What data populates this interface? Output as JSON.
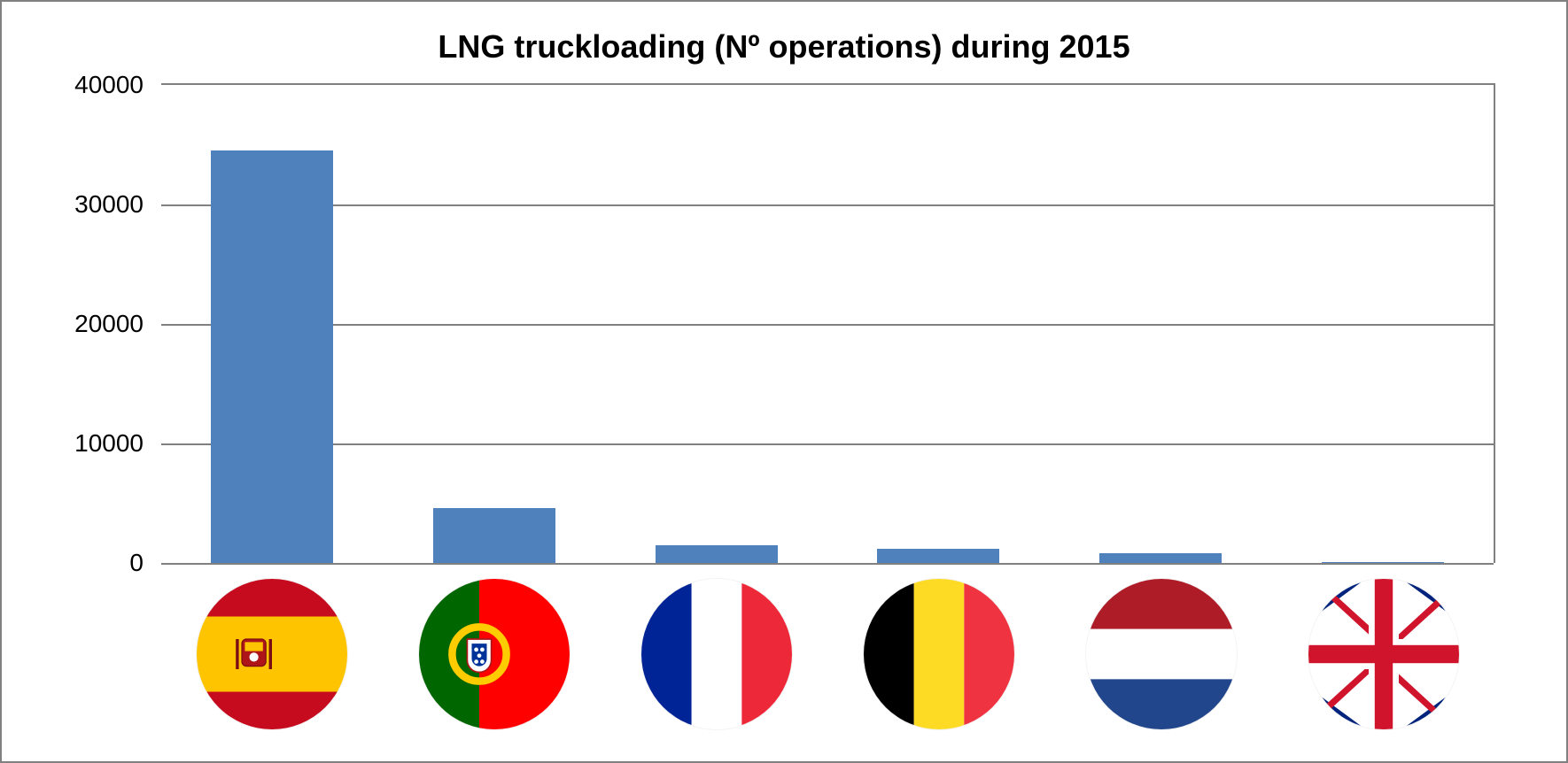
{
  "chart": {
    "type": "bar",
    "title": "LNG truckloading (Nº operations) during 2015",
    "title_fontsize": 36,
    "title_color": "#000000",
    "background_color": "#ffffff",
    "border_color": "#808080",
    "grid_color": "#808080",
    "bar_color": "#4f81bd",
    "bar_width_ratio": 0.55,
    "ylim": [
      0,
      40000
    ],
    "ytick_step": 10000,
    "yticks": [
      0,
      10000,
      20000,
      30000,
      40000
    ],
    "tick_fontsize": 28,
    "tick_color": "#000000",
    "categories": [
      "Spain",
      "Portugal",
      "France",
      "Belgium",
      "Netherlands",
      "United Kingdom"
    ],
    "values": [
      34500,
      4600,
      1500,
      1200,
      800,
      50
    ],
    "flags": {
      "spain": {
        "stripes": [
          "#c60b1e",
          "#ffc400",
          "#c60b1e"
        ],
        "crest": "#ad1519"
      },
      "portugal": {
        "left": "#006600",
        "right": "#ff0000",
        "emblem_ring": "#ffcc00",
        "emblem_inner": "#ffffff",
        "emblem_center": "#003399"
      },
      "france": {
        "left": "#002395",
        "middle": "#ffffff",
        "right": "#ed2939"
      },
      "belgium": {
        "left": "#000000",
        "middle": "#fdda24",
        "right": "#ef3340"
      },
      "netherlands": {
        "top": "#ae1c28",
        "middle": "#ffffff",
        "bottom": "#21468b"
      },
      "uk": {
        "bg": "#ffffff",
        "red": "#cf142b",
        "blue": "#00247d"
      }
    }
  }
}
